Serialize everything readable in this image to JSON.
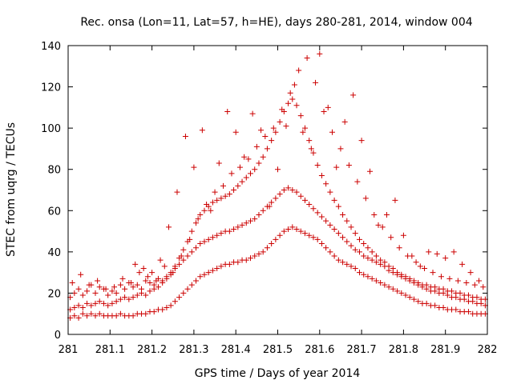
{
  "chart_data": {
    "type": "scatter",
    "title": "Rec. onsa (Lon=11, Lat=57, h=HE), days 280-281, 2014, window 004",
    "xlabel": "GPS time / Days of year 2014",
    "ylabel": "STEC from uqrg / TECUs",
    "xlim": [
      281,
      282
    ],
    "ylim": [
      0,
      140
    ],
    "xticks": [
      "281",
      "281.1",
      "281.2",
      "281.3",
      "281.4",
      "281.5",
      "281.6",
      "281.7",
      "281.8",
      "281.9",
      "282"
    ],
    "yticks": [
      "0",
      "20",
      "40",
      "60",
      "80",
      "100",
      "120",
      "140"
    ],
    "grid": false,
    "legend": "none",
    "marker": "plus",
    "color": "#cc0000",
    "series": [
      {
        "x": [
          281.005,
          281.015,
          281.025,
          281.035,
          281.045,
          281.055,
          281.065,
          281.075,
          281.085,
          281.095,
          281.105,
          281.115,
          281.125,
          281.135,
          281.145,
          281.155,
          281.165,
          281.175,
          281.185,
          281.195,
          281.205,
          281.215,
          281.225,
          281.235,
          281.245,
          281.255,
          281.265,
          281.275,
          281.285,
          281.295,
          281.305,
          281.315,
          281.325,
          281.335,
          281.345,
          281.355,
          281.365,
          281.375,
          281.385,
          281.395,
          281.405,
          281.415,
          281.425,
          281.435,
          281.445,
          281.455,
          281.465,
          281.475,
          281.485,
          281.495,
          281.505,
          281.515,
          281.525,
          281.535,
          281.545,
          281.555,
          281.565,
          281.575,
          281.585,
          281.595,
          281.605,
          281.615,
          281.625,
          281.635,
          281.645,
          281.655,
          281.665,
          281.675,
          281.685,
          281.695,
          281.705,
          281.715,
          281.725,
          281.735,
          281.745,
          281.755,
          281.765,
          281.775,
          281.785,
          281.795,
          281.805,
          281.815,
          281.825,
          281.835,
          281.845,
          281.855,
          281.865,
          281.875,
          281.885,
          281.895,
          281.905,
          281.915,
          281.925,
          281.935,
          281.945,
          281.955,
          281.965,
          281.975,
          281.985,
          281.995
        ],
        "y": [
          8,
          9,
          8,
          10,
          9,
          10,
          9,
          10,
          9,
          9,
          9,
          9,
          10,
          9,
          9,
          9,
          10,
          10,
          10,
          11,
          11,
          12,
          12,
          13,
          14,
          16,
          18,
          20,
          22,
          24,
          26,
          28,
          29,
          30,
          31,
          32,
          33,
          34,
          34,
          35,
          35,
          36,
          36,
          37,
          38,
          39,
          40,
          42,
          44,
          46,
          48,
          50,
          51,
          52,
          51,
          50,
          49,
          48,
          47,
          46,
          44,
          42,
          40,
          38,
          36,
          35,
          34,
          33,
          32,
          30,
          29,
          28,
          27,
          26,
          25,
          24,
          23,
          22,
          21,
          20,
          19,
          18,
          17,
          16,
          15,
          15,
          14,
          14,
          13,
          13,
          12,
          12,
          12,
          11,
          11,
          11,
          10,
          10,
          10,
          10
        ]
      },
      {
        "x": [
          281.005,
          281.015,
          281.025,
          281.035,
          281.045,
          281.055,
          281.065,
          281.075,
          281.085,
          281.095,
          281.105,
          281.115,
          281.125,
          281.135,
          281.145,
          281.155,
          281.165,
          281.175,
          281.185,
          281.195,
          281.205,
          281.215,
          281.225,
          281.235,
          281.245,
          281.255,
          281.265,
          281.275,
          281.285,
          281.295,
          281.305,
          281.315,
          281.325,
          281.335,
          281.345,
          281.355,
          281.365,
          281.375,
          281.385,
          281.395,
          281.405,
          281.415,
          281.425,
          281.435,
          281.445,
          281.455,
          281.465,
          281.475,
          281.485,
          281.495,
          281.505,
          281.515,
          281.525,
          281.535,
          281.545,
          281.555,
          281.565,
          281.575,
          281.585,
          281.595,
          281.605,
          281.615,
          281.625,
          281.635,
          281.645,
          281.655,
          281.665,
          281.675,
          281.685,
          281.695,
          281.705,
          281.715,
          281.725,
          281.735,
          281.745,
          281.755,
          281.765,
          281.775,
          281.785,
          281.795,
          281.805,
          281.815,
          281.825,
          281.835,
          281.845,
          281.855,
          281.865,
          281.875,
          281.885,
          281.895,
          281.905,
          281.915,
          281.925,
          281.935,
          281.945,
          281.955,
          281.965,
          281.975,
          281.985,
          281.995
        ],
        "y": [
          12,
          13,
          14,
          13,
          15,
          14,
          15,
          16,
          15,
          14,
          15,
          16,
          17,
          18,
          17,
          18,
          19,
          20,
          19,
          21,
          22,
          23,
          25,
          27,
          29,
          32,
          34,
          36,
          38,
          40,
          42,
          44,
          45,
          46,
          47,
          48,
          49,
          50,
          50,
          51,
          52,
          53,
          54,
          55,
          56,
          58,
          60,
          62,
          64,
          66,
          68,
          70,
          71,
          70,
          69,
          67,
          65,
          63,
          61,
          59,
          57,
          55,
          53,
          51,
          49,
          47,
          45,
          43,
          41,
          40,
          38,
          37,
          36,
          35,
          34,
          33,
          31,
          30,
          29,
          28,
          27,
          26,
          25,
          24,
          23,
          22,
          21,
          21,
          20,
          20,
          19,
          18,
          18,
          17,
          17,
          16,
          16,
          15,
          15,
          14
        ]
      },
      {
        "x": [
          281.005,
          281.015,
          281.025,
          281.035,
          281.045,
          281.055,
          281.065,
          281.075,
          281.085,
          281.095,
          281.105,
          281.115,
          281.125,
          281.135,
          281.145,
          281.155,
          281.165,
          281.175,
          281.185,
          281.195,
          281.205,
          281.215,
          281.225,
          281.235,
          281.245,
          281.255,
          281.265,
          281.275,
          281.285,
          281.295,
          281.305,
          281.315,
          281.325,
          281.335,
          281.345,
          281.355,
          281.365,
          281.375,
          281.385,
          281.395,
          281.405,
          281.415,
          281.425,
          281.435,
          281.445,
          281.455,
          281.465,
          281.475,
          281.485,
          281.495,
          281.505,
          281.515,
          281.525,
          281.535,
          281.545,
          281.555,
          281.565,
          281.575,
          281.585,
          281.595,
          281.605,
          281.615,
          281.625,
          281.635,
          281.645,
          281.655,
          281.665,
          281.675,
          281.685,
          281.695,
          281.705,
          281.715,
          281.725,
          281.735,
          281.745,
          281.755,
          281.765,
          281.775,
          281.785,
          281.795,
          281.805,
          281.815,
          281.825,
          281.835,
          281.845,
          281.855,
          281.865,
          281.875,
          281.885,
          281.895,
          281.905,
          281.915,
          281.925,
          281.935,
          281.945,
          281.955,
          281.965,
          281.975,
          281.985,
          281.995
        ],
        "y": [
          18,
          20,
          22,
          19,
          21,
          24,
          20,
          23,
          22,
          19,
          21,
          20,
          24,
          22,
          25,
          23,
          24,
          22,
          26,
          25,
          24,
          27,
          26,
          28,
          30,
          33,
          37,
          41,
          45,
          50,
          54,
          58,
          60,
          62,
          64,
          65,
          66,
          67,
          68,
          70,
          72,
          74,
          76,
          78,
          80,
          83,
          86,
          90,
          94,
          98,
          103,
          108,
          112,
          114,
          111,
          106,
          100,
          94,
          88,
          82,
          77,
          73,
          69,
          65,
          62,
          58,
          55,
          52,
          49,
          46,
          44,
          42,
          40,
          38,
          36,
          35,
          33,
          32,
          30,
          29,
          28,
          27,
          26,
          25,
          24,
          24,
          23,
          23,
          22,
          22,
          21,
          21,
          20,
          20,
          19,
          19,
          18,
          18,
          17,
          17
        ]
      },
      {
        "x": [
          281.01,
          281.03,
          281.05,
          281.07,
          281.09,
          281.11,
          281.13,
          281.15,
          281.17,
          281.19,
          281.21,
          281.23,
          281.25,
          281.27,
          281.29,
          281.31,
          281.33,
          281.35,
          281.37,
          281.39,
          281.41,
          281.43,
          281.45,
          281.47,
          281.49,
          281.51,
          281.53,
          281.55,
          281.57,
          281.59,
          281.61,
          281.63,
          281.65,
          281.67,
          281.69,
          281.71,
          281.73,
          281.75,
          281.77,
          281.79,
          281.81,
          281.83,
          281.85,
          281.87,
          281.89,
          281.91,
          281.93,
          281.95,
          281.97,
          281.99
        ],
        "y": [
          25,
          29,
          24,
          26,
          22,
          23,
          27,
          25,
          30,
          28,
          26,
          33,
          30,
          38,
          46,
          56,
          63,
          69,
          72,
          78,
          81,
          85,
          91,
          96,
          100,
          109,
          117,
          128,
          134,
          122,
          108,
          98,
          90,
          82,
          74,
          66,
          58,
          52,
          47,
          42,
          38,
          35,
          32,
          30,
          28,
          27,
          26,
          25,
          24,
          23
        ]
      },
      {
        "x": [
          281.16,
          281.18,
          281.2,
          281.22,
          281.24,
          281.26,
          281.28,
          281.3,
          281.32,
          281.34,
          281.36,
          281.38,
          281.4,
          281.42,
          281.44,
          281.46,
          281.48,
          281.5,
          281.52,
          281.54,
          281.56,
          281.58,
          281.6,
          281.62,
          281.64,
          281.66,
          281.68,
          281.7,
          281.72,
          281.74,
          281.76,
          281.78,
          281.8,
          281.82,
          281.84,
          281.86,
          281.88,
          281.9,
          281.92,
          281.94,
          281.96,
          281.98
        ],
        "y": [
          34,
          32,
          30,
          36,
          52,
          69,
          96,
          81,
          99,
          60,
          83,
          108,
          98,
          86,
          107,
          99,
          62,
          80,
          101,
          121,
          98,
          90,
          136,
          110,
          81,
          103,
          116,
          94,
          79,
          53,
          58,
          65,
          48,
          38,
          33,
          40,
          39,
          37,
          40,
          34,
          30,
          26
        ]
      }
    ]
  }
}
